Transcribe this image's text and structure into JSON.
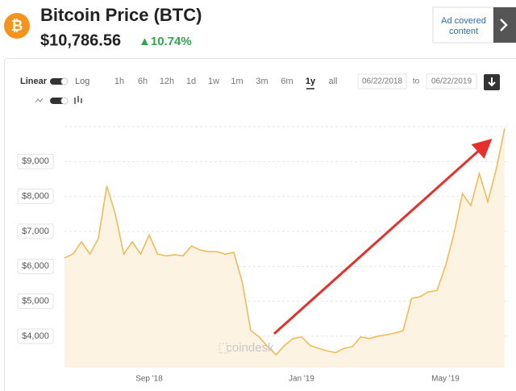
{
  "header": {
    "icon": "₿",
    "title": "Bitcoin Price (BTC)",
    "price": "$10,786.56",
    "change": "▲10.74%"
  },
  "ad": {
    "line1": "Ad covered",
    "line2": "content"
  },
  "controls": {
    "scale_linear": "Linear",
    "scale_log": "Log",
    "ranges": [
      "1h",
      "6h",
      "12h",
      "1d",
      "1w",
      "1m",
      "3m",
      "6m",
      "1y",
      "all"
    ],
    "selected_range": 8,
    "from": "06/22/2018",
    "to_label": "to",
    "to": "06/22/2019"
  },
  "watermark": "coindesk",
  "chart_data": {
    "type": "area",
    "color": "#f4b74a",
    "fill": "#fdf3e3",
    "categories": [
      null,
      null,
      null,
      null,
      null,
      null,
      null,
      null,
      null,
      null,
      "Sep '18",
      null,
      null,
      null,
      null,
      null,
      null,
      null,
      null,
      null,
      null,
      null,
      null,
      null,
      null,
      null,
      null,
      null,
      "Jan '19",
      null,
      null,
      null,
      null,
      null,
      null,
      null,
      null,
      null,
      null,
      null,
      null,
      null,
      null,
      null,
      null,
      "May '19",
      null,
      null,
      null,
      null,
      null,
      null,
      null
    ],
    "values": [
      6240,
      6350,
      6700,
      6350,
      6800,
      8300,
      7500,
      6350,
      6700,
      6350,
      6900,
      6350,
      6300,
      6330,
      6300,
      6580,
      6470,
      6420,
      6420,
      6350,
      6400,
      5550,
      4160,
      3980,
      3700,
      3470,
      3740,
      3930,
      3980,
      3740,
      3650,
      3580,
      3530,
      3650,
      3700,
      3980,
      3930,
      4000,
      4040,
      4090,
      4160,
      5080,
      5130,
      5270,
      5310,
      6000,
      6930,
      8080,
      7740,
      8660,
      7850,
      8780,
      9950
    ],
    "ylim": [
      3100,
      10000
    ],
    "yticks": [
      {
        "value": 4000,
        "label": "$4,000"
      },
      {
        "value": 5000,
        "label": "$5,000"
      },
      {
        "value": 6000,
        "label": "$6,000"
      },
      {
        "value": 7000,
        "label": "$7,000"
      },
      {
        "value": 8000,
        "label": "$8,000"
      },
      {
        "value": 9000,
        "label": "$9,000"
      }
    ],
    "grid": true
  }
}
